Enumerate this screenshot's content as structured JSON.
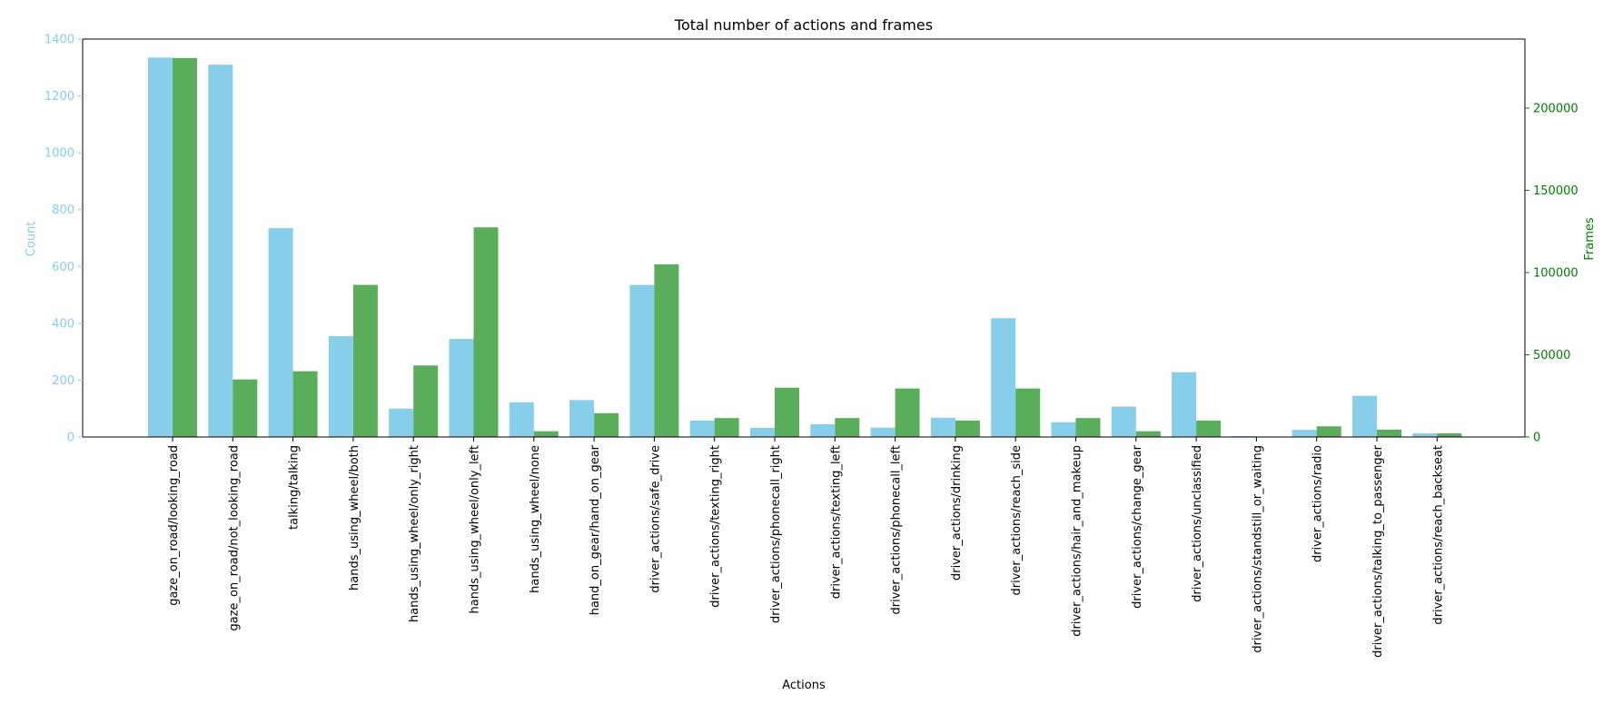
{
  "chart_data": {
    "type": "bar",
    "title": "Total number of actions and frames",
    "xlabel": "Actions",
    "ylabel": "Count",
    "y2label": "Frames",
    "ylim": [
      0,
      1400
    ],
    "y2lim": [
      0,
      242000
    ],
    "yticks": [
      0,
      200,
      400,
      600,
      800,
      1000,
      1200,
      1400
    ],
    "y2ticks": [
      0,
      50000,
      100000,
      150000,
      200000
    ],
    "grid": false,
    "colors": {
      "count": "#87ceeb",
      "frames": "#5aad5a",
      "left_axis": "#87ceeb",
      "right_axis": "#008000"
    },
    "categories": [
      "gaze_on_road/looking_road",
      "gaze_on_road/not_looking_road",
      "talking/talking",
      "hands_using_wheel/both",
      "hands_using_wheel/only_right",
      "hands_using_wheel/only_left",
      "hands_using_wheel/none",
      "hand_on_gear/hand_on_gear",
      "driver_actions/safe_drive",
      "driver_actions/texting_right",
      "driver_actions/phonecall_right",
      "driver_actions/texting_left",
      "driver_actions/phonecall_left",
      "driver_actions/drinking",
      "driver_actions/reach_side",
      "driver_actions/hair_and_makeup",
      "driver_actions/change_gear",
      "driver_actions/unclassified",
      "driver_actions/standstill_or_waiting",
      "driver_actions/radio",
      "driver_actions/talking_to_passenger",
      "driver_actions/reach_backseat"
    ],
    "series": [
      {
        "axis": "left",
        "values": [
          1335,
          1310,
          735,
          355,
          100,
          345,
          122,
          130,
          535,
          58,
          32,
          45,
          33,
          68,
          418,
          52,
          107,
          228,
          3,
          25,
          145,
          13
        ]
      },
      {
        "axis": "right",
        "values": [
          230500,
          35000,
          40000,
          92500,
          43500,
          127500,
          3500,
          14500,
          105000,
          11500,
          30000,
          11500,
          29500,
          10000,
          29500,
          11500,
          3500,
          10000,
          300,
          6500,
          4500,
          2200
        ]
      }
    ]
  }
}
